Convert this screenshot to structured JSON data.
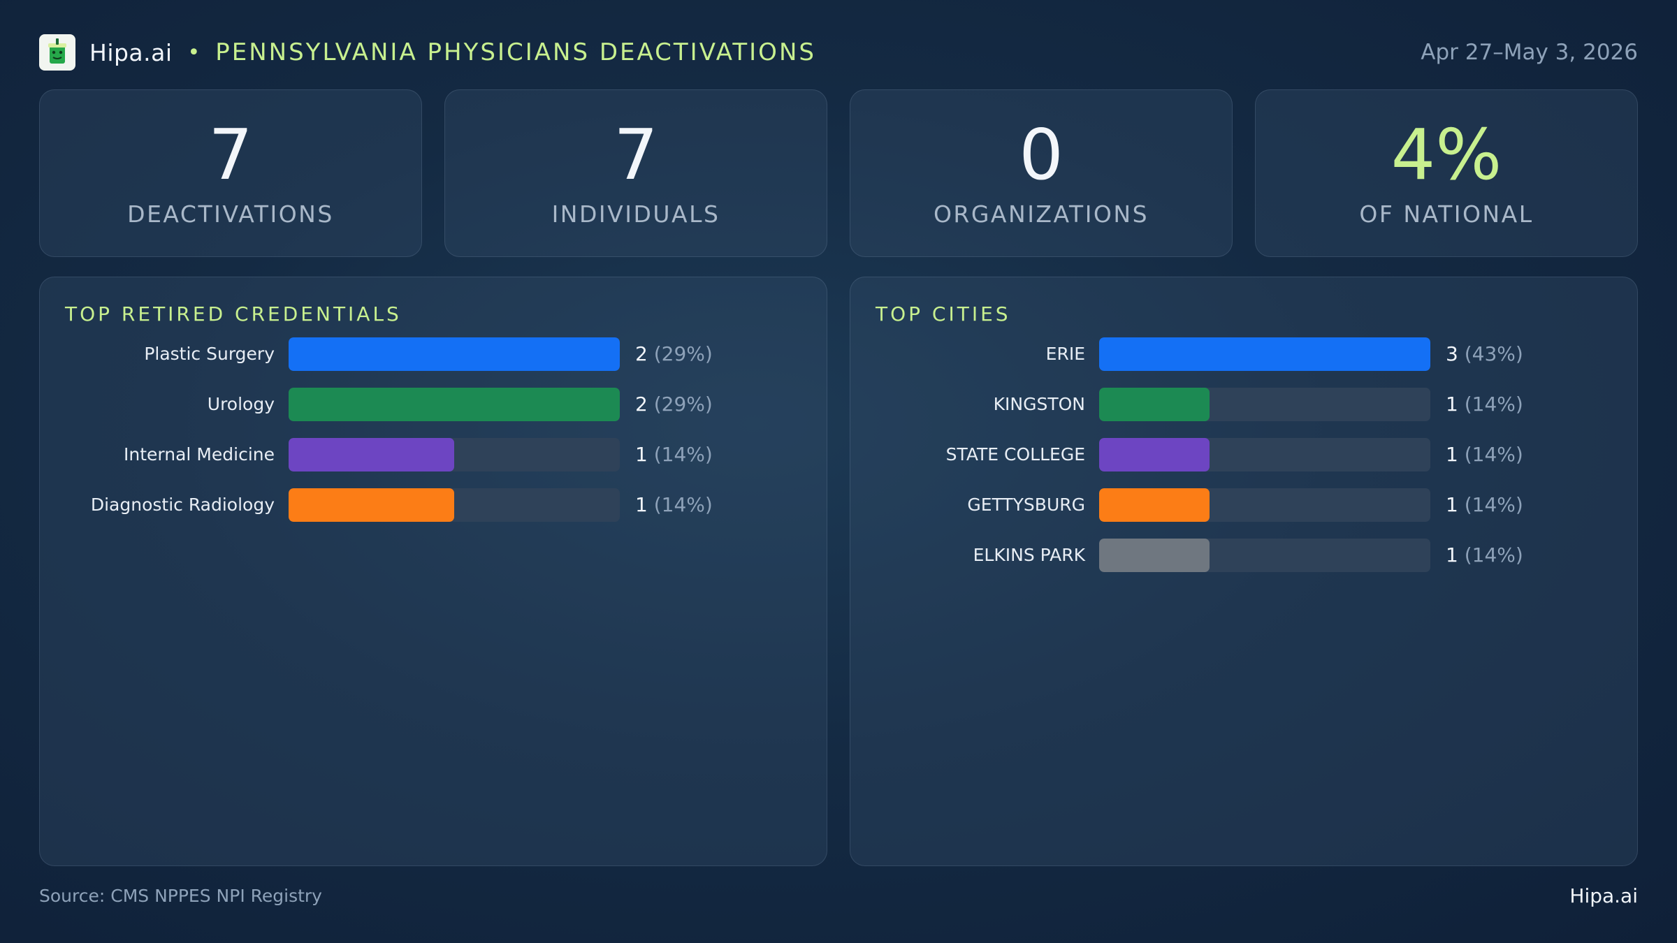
{
  "header": {
    "brand": "Hipa.ai",
    "separator": "•",
    "title": "PENNSYLVANIA PHYSICIANS DEACTIVATIONS",
    "date_range": "Apr 27–May 3, 2026",
    "logo_icon": "cup-icon"
  },
  "kpis": [
    {
      "value": "7",
      "label": "DEACTIVATIONS"
    },
    {
      "value": "7",
      "label": "INDIVIDUALS"
    },
    {
      "value": "0",
      "label": "ORGANIZATIONS"
    },
    {
      "value": "4%",
      "label": "OF NATIONAL"
    }
  ],
  "colors": {
    "accent": "#c8f08f",
    "blue": "#1470f5",
    "green": "#1c8a53",
    "purple": "#6d45c2",
    "orange": "#fc7d16",
    "gray": "#6f7780",
    "track": "#2f4259"
  },
  "chart_data": [
    {
      "type": "bar",
      "orientation": "horizontal",
      "title": "TOP RETIRED CREDENTIALS",
      "categories": [
        "Plastic Surgery",
        "Urology",
        "Internal Medicine",
        "Diagnostic Radiology"
      ],
      "values": [
        2,
        2,
        1,
        1
      ],
      "value_labels": [
        "2",
        "2",
        "1",
        "1"
      ],
      "percent_labels": [
        "(29%)",
        "(29%)",
        "(14%)",
        "(14%)"
      ],
      "colors": [
        "#1470f5",
        "#1c8a53",
        "#6d45c2",
        "#fc7d16"
      ],
      "xlim": [
        0,
        2
      ]
    },
    {
      "type": "bar",
      "orientation": "horizontal",
      "title": "TOP CITIES",
      "categories": [
        "ERIE",
        "KINGSTON",
        "STATE COLLEGE",
        "GETTYSBURG",
        "ELKINS PARK"
      ],
      "values": [
        3,
        1,
        1,
        1,
        1
      ],
      "value_labels": [
        "3",
        "1",
        "1",
        "1",
        "1"
      ],
      "percent_labels": [
        "(43%)",
        "(14%)",
        "(14%)",
        "(14%)",
        "(14%)"
      ],
      "colors": [
        "#1470f5",
        "#1c8a53",
        "#6d45c2",
        "#fc7d16",
        "#6f7780"
      ],
      "xlim": [
        0,
        3
      ]
    }
  ],
  "footer": {
    "source": "Source: CMS NPPES NPI Registry",
    "brand": "Hipa.ai"
  }
}
